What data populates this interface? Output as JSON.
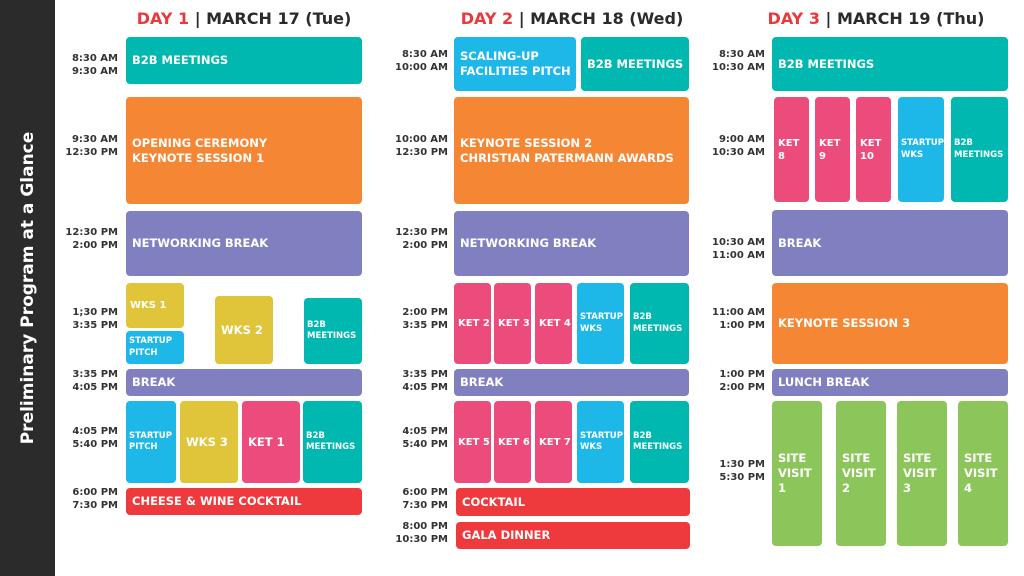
{
  "sidebar_title": "Preliminary Program at a Glance",
  "colors": {
    "teal": "#00b8b0",
    "orange": "#f58634",
    "purple": "#8080c0",
    "yellow": "#e0c43a",
    "blue": "#1eb8e8",
    "pink": "#ec4c7c",
    "red": "#ee3a3d",
    "green": "#8cc65a"
  },
  "days": [
    {
      "day": "DAY 1",
      "date": "| MARCH 17 (Tue)",
      "times": [
        "8:30 AM\n9:30 AM",
        "9:30 AM\n12:30 PM",
        "12:30 PM\n2:00 PM",
        "1;30 PM\n3:35 PM",
        "3:35 PM\n4:05 PM",
        "4:05 PM\n5:40 PM",
        "6:00 PM\n7:30 PM"
      ],
      "blocks": [
        {
          "label": "B2B MEETINGS",
          "color": "teal"
        },
        {
          "label": "OPENING CEREMONY\nKEYNOTE SESSION 1",
          "color": "orange"
        },
        {
          "label": "NETWORKING BREAK",
          "color": "purple"
        },
        {
          "label": "WKS 1",
          "color": "yellow"
        },
        {
          "label": "STARTUP\nPITCH",
          "color": "blue"
        },
        {
          "label": "WKS 2",
          "color": "yellow"
        },
        {
          "label": "B2B\nMEETINGS",
          "color": "teal"
        },
        {
          "label": "BREAK",
          "color": "purple"
        },
        {
          "label": "STARTUP\nPITCH",
          "color": "blue"
        },
        {
          "label": "WKS 3",
          "color": "yellow"
        },
        {
          "label": "KET 1",
          "color": "pink"
        },
        {
          "label": "B2B\nMEETINGS",
          "color": "teal"
        },
        {
          "label": "CHEESE & WINE COCKTAIL",
          "color": "red"
        }
      ]
    },
    {
      "day": "DAY 2",
      "date": "| MARCH 18 (Wed)",
      "times": [
        "8:30 AM\n10:00 AM",
        "10:00 AM\n12:30 PM",
        "12:30 PM\n2:00 PM",
        "2:00 PM\n3:35 PM",
        "3:35 PM\n4:05 PM",
        "4:05 PM\n5:40 PM",
        "6:00 PM\n7:30 PM",
        "8:00 PM\n10:30 PM"
      ],
      "blocks": [
        {
          "label": "SCALING-UP\nFACILITIES  PITCH",
          "color": "blue"
        },
        {
          "label": "B2B MEETINGS",
          "color": "teal"
        },
        {
          "label": "KEYNOTE SESSION 2\nCHRISTIAN PATERMANN AWARDS",
          "color": "orange"
        },
        {
          "label": "NETWORKING BREAK",
          "color": "purple"
        },
        {
          "label": "KET 2",
          "color": "pink"
        },
        {
          "label": "KET 3",
          "color": "pink"
        },
        {
          "label": "KET 4",
          "color": "pink"
        },
        {
          "label": "STARTUP\nWKS",
          "color": "blue"
        },
        {
          "label": "B2B\nMEETINGS",
          "color": "teal"
        },
        {
          "label": "BREAK",
          "color": "purple"
        },
        {
          "label": "KET 5",
          "color": "pink"
        },
        {
          "label": "KET 6",
          "color": "pink"
        },
        {
          "label": "KET 7",
          "color": "pink"
        },
        {
          "label": "STARTUP\nWKS",
          "color": "blue"
        },
        {
          "label": "B2B\nMEETINGS",
          "color": "teal"
        },
        {
          "label": "COCKTAIL",
          "color": "red"
        },
        {
          "label": "GALA DINNER",
          "color": "red"
        }
      ]
    },
    {
      "day": "DAY 3",
      "date": "| MARCH 19 (Thu)",
      "times": [
        "8:30 AM\n10:30 AM",
        "9:00 AM\n10:30 AM",
        "10:30 AM\n11:00 AM",
        "11:00 AM\n1:00 PM",
        "1:00 PM\n2:00 PM",
        "1:30 PM\n5:30 PM"
      ],
      "blocks": [
        {
          "label": "B2B MEETINGS",
          "color": "teal"
        },
        {
          "label": "KET 8",
          "color": "pink"
        },
        {
          "label": "KET 9",
          "color": "pink"
        },
        {
          "label": "KET 10",
          "color": "pink"
        },
        {
          "label": "STARTUP\nWKS",
          "color": "blue"
        },
        {
          "label": "B2B\nMEETINGS",
          "color": "teal"
        },
        {
          "label": "BREAK",
          "color": "purple"
        },
        {
          "label": "KEYNOTE SESSION 3",
          "color": "orange"
        },
        {
          "label": "LUNCH BREAK",
          "color": "purple"
        },
        {
          "label": "SITE\nVISIT 1",
          "color": "green"
        },
        {
          "label": "SITE\nVISIT 2",
          "color": "green"
        },
        {
          "label": "SITE\nVISIT 3",
          "color": "green"
        },
        {
          "label": "SITE\nVISIT 4",
          "color": "green"
        }
      ]
    }
  ]
}
